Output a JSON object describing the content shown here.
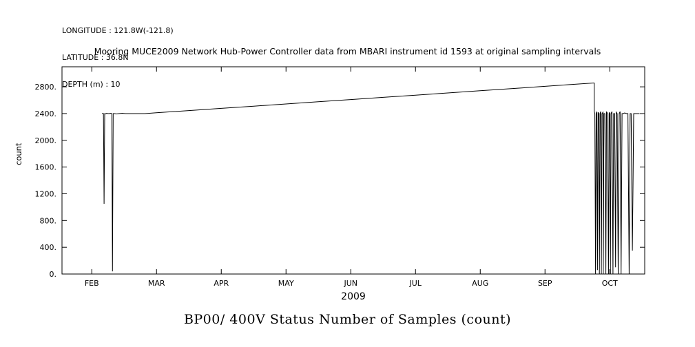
{
  "header": {
    "longitude": "LONGITUDE : 121.8W(-121.8)",
    "latitude": "LATITUDE : 36.8N",
    "depth": "DEPTH (m) : 10"
  },
  "chart_data": {
    "type": "line",
    "title": "Mooring MUCE2009 Network Hub-Power Controller data from MBARI instrument id 1593 at original sampling intervals",
    "footer_title": "BP00/ 400V Status Number of Samples (count)",
    "xlabel": "2009",
    "ylabel": "count",
    "x_unit": "month (decimal, Jan = 1)",
    "xlim": [
      1.54,
      10.54
    ],
    "ylim": [
      0,
      3100
    ],
    "grid": false,
    "legend": "none",
    "xticks": [
      2,
      3,
      4,
      5,
      6,
      7,
      8,
      9,
      10
    ],
    "xtick_labels": [
      "FEB",
      "MAR",
      "APR",
      "MAY",
      "JUN",
      "JUL",
      "AUG",
      "SEP",
      "OCT"
    ],
    "yticks": [
      0,
      400,
      800,
      1200,
      1600,
      2000,
      2400,
      2800
    ],
    "ytick_labels": [
      "0.",
      "400.",
      "800.",
      "1200.",
      "1600.",
      "2000.",
      "2400.",
      "2800."
    ],
    "series": [
      {
        "name": "BP00/ 400V Status Number of Samples",
        "color": "#000000",
        "points": [
          [
            2.16,
            2400
          ],
          [
            2.17,
            2405
          ],
          [
            2.18,
            2400
          ],
          [
            2.19,
            1050
          ],
          [
            2.2,
            2400
          ],
          [
            2.21,
            2395
          ],
          [
            2.23,
            2405
          ],
          [
            2.25,
            2400
          ],
          [
            2.27,
            2400
          ],
          [
            2.29,
            2405
          ],
          [
            2.31,
            2400
          ],
          [
            2.32,
            40
          ],
          [
            2.33,
            2400
          ],
          [
            2.35,
            2400
          ],
          [
            2.38,
            2395
          ],
          [
            2.42,
            2400
          ],
          [
            2.47,
            2405
          ],
          [
            2.52,
            2400
          ],
          [
            2.58,
            2400
          ],
          [
            2.65,
            2400
          ],
          [
            2.72,
            2400
          ],
          [
            2.82,
            2400
          ],
          [
            3.0,
            2412
          ],
          [
            3.5,
            2445
          ],
          [
            4.0,
            2478
          ],
          [
            4.5,
            2511
          ],
          [
            5.0,
            2544
          ],
          [
            5.5,
            2577
          ],
          [
            6.0,
            2610
          ],
          [
            6.5,
            2643
          ],
          [
            7.0,
            2676
          ],
          [
            7.5,
            2709
          ],
          [
            8.0,
            2742
          ],
          [
            8.5,
            2775
          ],
          [
            9.0,
            2808
          ],
          [
            9.4,
            2835
          ],
          [
            9.76,
            2858
          ],
          [
            9.76,
            2430
          ],
          [
            9.77,
            2400
          ],
          [
            9.78,
            0
          ],
          [
            9.79,
            2400
          ],
          [
            9.8,
            2430
          ],
          [
            9.81,
            60
          ],
          [
            9.82,
            2420
          ],
          [
            9.83,
            2400
          ],
          [
            9.84,
            0
          ],
          [
            9.85,
            2400
          ],
          [
            9.86,
            2430
          ],
          [
            9.87,
            0
          ],
          [
            9.88,
            2400
          ],
          [
            9.895,
            2420
          ],
          [
            9.9,
            0
          ],
          [
            9.91,
            2400
          ],
          [
            9.925,
            2400
          ],
          [
            9.94,
            0
          ],
          [
            9.95,
            2430
          ],
          [
            9.965,
            2400
          ],
          [
            9.98,
            0
          ],
          [
            9.99,
            2400
          ],
          [
            10.0,
            2420
          ],
          [
            10.01,
            0
          ],
          [
            10.02,
            2400
          ],
          [
            10.035,
            2430
          ],
          [
            10.05,
            0
          ],
          [
            10.06,
            2400
          ],
          [
            10.075,
            2400
          ],
          [
            10.09,
            100
          ],
          [
            10.1,
            2420
          ],
          [
            10.115,
            2400
          ],
          [
            10.13,
            0
          ],
          [
            10.145,
            2400
          ],
          [
            10.16,
            2430
          ],
          [
            10.175,
            0
          ],
          [
            10.19,
            2400
          ],
          [
            10.21,
            2400
          ],
          [
            10.23,
            2410
          ],
          [
            10.26,
            2400
          ],
          [
            10.28,
            2400
          ],
          [
            10.3,
            0
          ],
          [
            10.315,
            2400
          ],
          [
            10.33,
            2400
          ],
          [
            10.35,
            350
          ],
          [
            10.37,
            2400
          ],
          [
            10.4,
            2400
          ],
          [
            10.43,
            2400
          ],
          [
            10.46,
            2400
          ]
        ]
      }
    ]
  }
}
